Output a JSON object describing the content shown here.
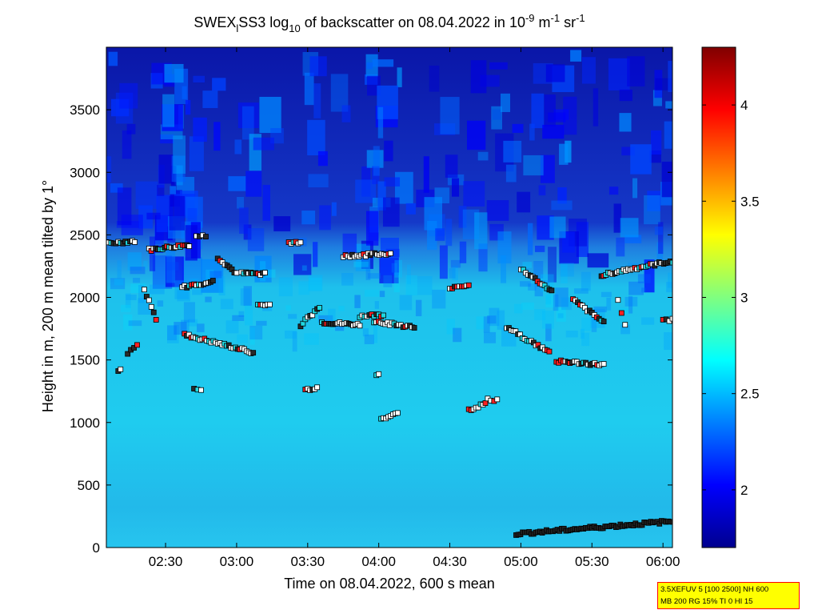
{
  "chart_data": {
    "type": "heatmap",
    "title": {
      "part1": "SWEX",
      "sub1": "l",
      "part2": "SS3 log",
      "sub2": "10",
      "part3": " of backscatter on 08.04.2022 in 10",
      "sup1": "-9",
      "part4": " m",
      "sup2": "-1",
      "part5": " sr",
      "sup3": "-1"
    },
    "xlabel": "Time on 08.04.2022, 600 s mean",
    "ylabel": "Height in m, 200 m mean tilted by 1°",
    "x_range": [
      "02:05",
      "06:04"
    ],
    "y_range": [
      0,
      4000
    ],
    "x_ticks": [
      "02:30",
      "03:00",
      "03:30",
      "04:00",
      "04:30",
      "05:00",
      "05:30",
      "06:00"
    ],
    "y_ticks": [
      0,
      500,
      1000,
      1500,
      2000,
      2500,
      3000,
      3500
    ],
    "colorbar": {
      "range": [
        1.7,
        4.3
      ],
      "ticks": [
        2,
        2.5,
        3,
        3.5,
        4
      ],
      "colormap": "jet"
    },
    "field_summary": [
      {
        "height_range": [
          0,
          300
        ],
        "value": 2.6
      },
      {
        "height_range": [
          300,
          1700
        ],
        "value": 2.5
      },
      {
        "height_range": [
          1700,
          2300
        ],
        "value": 2.35
      },
      {
        "height_range": [
          2300,
          4000
        ],
        "value": 1.85,
        "note": "patchy, values up to about 2.5"
      }
    ],
    "markers": {
      "description": "square markers: cloud base detections",
      "segments": [
        {
          "t": [
            "02:05",
            "02:17"
          ],
          "h": [
            2430,
            2450
          ]
        },
        {
          "t": [
            "02:23",
            "02:40"
          ],
          "h": [
            2380,
            2420
          ]
        },
        {
          "t": [
            "02:43",
            "02:47"
          ],
          "h": [
            2490,
            2490
          ]
        },
        {
          "t": [
            "02:52",
            "03:00"
          ],
          "h": [
            2320,
            2190
          ]
        },
        {
          "t": [
            "03:02",
            "03:12"
          ],
          "h": [
            2190,
            2190
          ]
        },
        {
          "t": [
            "02:37",
            "02:50"
          ],
          "h": [
            2080,
            2130
          ]
        },
        {
          "t": [
            "02:38",
            "03:07"
          ],
          "h": [
            1700,
            1560
          ]
        },
        {
          "t": [
            "02:21",
            "02:26"
          ],
          "h": [
            2060,
            1830
          ]
        },
        {
          "t": [
            "02:14",
            "02:18"
          ],
          "h": [
            1550,
            1620
          ]
        },
        {
          "t": [
            "02:10",
            "02:11"
          ],
          "h": [
            1400,
            1430
          ]
        },
        {
          "t": [
            "02:42",
            "02:45"
          ],
          "h": [
            1280,
            1250
          ]
        },
        {
          "t": [
            "03:09",
            "03:14"
          ],
          "h": [
            1940,
            1940
          ]
        },
        {
          "t": [
            "03:22",
            "03:27"
          ],
          "h": [
            2440,
            2440
          ]
        },
        {
          "t": [
            "03:27",
            "03:35"
          ],
          "h": [
            1780,
            1920
          ]
        },
        {
          "t": [
            "03:29",
            "03:34"
          ],
          "h": [
            1260,
            1280
          ]
        },
        {
          "t": [
            "03:36",
            "03:52"
          ],
          "h": [
            1800,
            1780
          ]
        },
        {
          "t": [
            "03:45",
            "04:05"
          ],
          "h": [
            2330,
            2350
          ]
        },
        {
          "t": [
            "03:52",
            "04:02"
          ],
          "h": [
            1850,
            1860
          ]
        },
        {
          "t": [
            "03:58",
            "04:15"
          ],
          "h": [
            1810,
            1760
          ]
        },
        {
          "t": [
            "03:59",
            "04:00"
          ],
          "h": [
            1390,
            1390
          ]
        },
        {
          "t": [
            "04:01",
            "04:08"
          ],
          "h": [
            1020,
            1070
          ]
        },
        {
          "t": [
            "04:30",
            "04:38"
          ],
          "h": [
            2080,
            2100
          ]
        },
        {
          "t": [
            "04:38",
            "04:45"
          ],
          "h": [
            1100,
            1150
          ]
        },
        {
          "t": [
            "04:46",
            "04:50"
          ],
          "h": [
            1180,
            1180
          ]
        },
        {
          "t": [
            "04:54",
            "05:12"
          ],
          "h": [
            1760,
            1560
          ]
        },
        {
          "t": [
            "05:00",
            "05:13"
          ],
          "h": [
            2230,
            2050
          ]
        },
        {
          "t": [
            "05:15",
            "05:35"
          ],
          "h": [
            1490,
            1460
          ]
        },
        {
          "t": [
            "05:22",
            "05:35"
          ],
          "h": [
            1980,
            1800
          ]
        },
        {
          "t": [
            "05:34",
            "06:04"
          ],
          "h": [
            2180,
            2290
          ]
        },
        {
          "t": [
            "05:41",
            "05:44"
          ],
          "h": [
            1980,
            1780
          ]
        },
        {
          "t": [
            "06:00",
            "06:04"
          ],
          "h": [
            1820,
            1820
          ]
        },
        {
          "t": [
            "04:58",
            "06:04"
          ],
          "h": [
            110,
            210
          ]
        }
      ]
    }
  },
  "info_box": {
    "line1": "3.5XEFUV 5 [100 2500] NH 600",
    "line2": "MB 200 RG 15% TI 0 HI 15"
  }
}
